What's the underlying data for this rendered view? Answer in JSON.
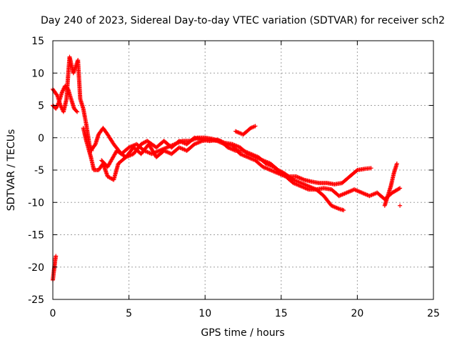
{
  "chart_data": {
    "type": "scatter",
    "title": "Day 240 of 2023, Sidereal Day-to-day VTEC variation (SDTVAR) for receiver sch2",
    "xlabel": "GPS time / hours",
    "ylabel": "SDTVAR / TECUs",
    "xlim": [
      0,
      25
    ],
    "ylim": [
      -25,
      15
    ],
    "x_ticks": [
      0,
      5,
      10,
      15,
      20,
      25
    ],
    "y_ticks": [
      -25,
      -20,
      -15,
      -10,
      -5,
      0,
      5,
      10,
      15
    ],
    "grid": true,
    "legend": "none",
    "marker": "+",
    "colors": {
      "series": "#ff0000",
      "grid": "#a0a0a0",
      "axis": "#000000"
    },
    "series": [
      {
        "name": "trace-1",
        "points": [
          [
            0.0,
            -22.0
          ],
          [
            0.05,
            -21.0
          ],
          [
            0.1,
            -20.0
          ],
          [
            0.15,
            -19.0
          ],
          [
            0.2,
            -18.3
          ]
        ]
      },
      {
        "name": "trace-2",
        "points": [
          [
            0.0,
            7.5
          ],
          [
            0.3,
            6.5
          ],
          [
            0.5,
            5.0
          ],
          [
            0.7,
            4.0
          ],
          [
            0.9,
            6.0
          ],
          [
            1.0,
            9.5
          ],
          [
            1.1,
            12.5
          ],
          [
            1.2,
            11.5
          ],
          [
            1.35,
            10.0
          ],
          [
            1.5,
            11.0
          ],
          [
            1.65,
            12.0
          ],
          [
            1.8,
            6.0
          ],
          [
            2.0,
            4.5
          ],
          [
            2.2,
            2.0
          ],
          [
            2.4,
            -1.0
          ],
          [
            2.55,
            -2.0
          ]
        ]
      },
      {
        "name": "trace-3",
        "points": [
          [
            0.0,
            5.0
          ],
          [
            0.2,
            4.5
          ],
          [
            0.4,
            5.5
          ],
          [
            0.6,
            7.0
          ],
          [
            0.8,
            8.0
          ],
          [
            1.0,
            7.5
          ],
          [
            1.2,
            6.0
          ],
          [
            1.4,
            4.5
          ],
          [
            1.6,
            4.0
          ]
        ]
      },
      {
        "name": "trace-4",
        "points": [
          [
            2.0,
            1.5
          ],
          [
            2.2,
            -0.5
          ],
          [
            2.5,
            -3.0
          ],
          [
            2.7,
            -5.0
          ],
          [
            3.0,
            -5.0
          ],
          [
            3.3,
            -4.0
          ],
          [
            3.6,
            -6.0
          ],
          [
            4.0,
            -6.5
          ],
          [
            4.3,
            -4.0
          ],
          [
            4.8,
            -3.0
          ],
          [
            5.3,
            -2.5
          ],
          [
            5.8,
            -1.0
          ],
          [
            6.2,
            -0.5
          ],
          [
            6.8,
            -1.5
          ],
          [
            7.3,
            -0.5
          ],
          [
            7.8,
            -1.5
          ],
          [
            8.3,
            -0.5
          ],
          [
            8.8,
            -1.0
          ],
          [
            9.3,
            0.0
          ],
          [
            9.8,
            -0.3
          ],
          [
            10.3,
            -0.5
          ],
          [
            10.8,
            -0.3
          ],
          [
            11.3,
            -0.8
          ],
          [
            11.8,
            -1.0
          ],
          [
            12.3,
            -1.5
          ],
          [
            12.8,
            -2.5
          ],
          [
            13.3,
            -3.0
          ],
          [
            13.8,
            -3.5
          ],
          [
            14.3,
            -4.0
          ],
          [
            14.8,
            -5.0
          ],
          [
            15.2,
            -5.5
          ],
          [
            15.8,
            -6.5
          ],
          [
            16.3,
            -7.0
          ],
          [
            16.8,
            -7.5
          ],
          [
            17.3,
            -8.0
          ],
          [
            17.8,
            -9.0
          ],
          [
            18.3,
            -10.5
          ],
          [
            18.8,
            -11.0
          ],
          [
            19.1,
            -11.2
          ]
        ]
      },
      {
        "name": "trace-5",
        "points": [
          [
            2.5,
            -2.0
          ],
          [
            2.8,
            -1.0
          ],
          [
            3.0,
            0.5
          ],
          [
            3.3,
            1.5
          ],
          [
            3.6,
            0.5
          ],
          [
            4.0,
            -1.0
          ],
          [
            4.5,
            -2.5
          ],
          [
            5.0,
            -1.5
          ],
          [
            5.5,
            -1.0
          ],
          [
            6.0,
            -2.0
          ],
          [
            6.5,
            -2.5
          ],
          [
            7.0,
            -2.0
          ],
          [
            7.5,
            -1.5
          ],
          [
            8.0,
            -1.0
          ],
          [
            8.5,
            -0.5
          ],
          [
            9.0,
            -0.5
          ],
          [
            9.5,
            0.0
          ],
          [
            10.0,
            0.0
          ],
          [
            10.5,
            -0.2
          ],
          [
            11.0,
            -0.5
          ],
          [
            11.5,
            -1.5
          ],
          [
            12.0,
            -2.0
          ],
          [
            12.5,
            -2.0
          ],
          [
            13.0,
            -2.5
          ],
          [
            13.5,
            -3.0
          ],
          [
            14.0,
            -4.0
          ],
          [
            14.5,
            -4.5
          ],
          [
            15.0,
            -5.5
          ],
          [
            15.5,
            -6.0
          ],
          [
            16.0,
            -6.0
          ],
          [
            16.5,
            -6.5
          ],
          [
            17.0,
            -6.8
          ],
          [
            17.5,
            -7.0
          ],
          [
            18.0,
            -7.0
          ],
          [
            18.5,
            -7.2
          ],
          [
            19.0,
            -7.0
          ],
          [
            19.5,
            -6.0
          ],
          [
            20.0,
            -5.0
          ],
          [
            20.5,
            -4.8
          ],
          [
            20.9,
            -4.7
          ]
        ]
      },
      {
        "name": "trace-6",
        "points": [
          [
            3.2,
            -3.5
          ],
          [
            3.6,
            -4.5
          ],
          [
            4.2,
            -2.0
          ],
          [
            4.8,
            -3.0
          ],
          [
            5.3,
            -1.5
          ],
          [
            5.8,
            -2.5
          ],
          [
            6.3,
            -1.0
          ],
          [
            6.8,
            -3.0
          ],
          [
            7.3,
            -2.0
          ],
          [
            7.8,
            -2.5
          ],
          [
            8.3,
            -1.5
          ],
          [
            8.8,
            -2.0
          ],
          [
            9.3,
            -1.0
          ],
          [
            9.8,
            -0.5
          ],
          [
            10.3,
            -0.3
          ],
          [
            10.8,
            -0.5
          ],
          [
            11.3,
            -1.0
          ],
          [
            11.8,
            -1.2
          ],
          [
            12.3,
            -2.5
          ],
          [
            12.8,
            -3.0
          ],
          [
            13.3,
            -3.5
          ],
          [
            13.8,
            -4.5
          ],
          [
            14.3,
            -5.0
          ],
          [
            14.8,
            -5.5
          ],
          [
            15.3,
            -6.0
          ],
          [
            15.8,
            -7.0
          ],
          [
            16.3,
            -7.5
          ],
          [
            16.8,
            -8.0
          ],
          [
            17.3,
            -8.0
          ],
          [
            17.8,
            -7.8
          ],
          [
            18.3,
            -8.0
          ],
          [
            18.8,
            -9.0
          ],
          [
            19.3,
            -8.5
          ],
          [
            19.8,
            -8.0
          ],
          [
            20.3,
            -8.5
          ],
          [
            20.8,
            -9.0
          ],
          [
            21.3,
            -8.5
          ],
          [
            21.8,
            -9.5
          ],
          [
            22.3,
            -8.5
          ],
          [
            22.8,
            -7.8
          ]
        ]
      },
      {
        "name": "trace-7",
        "points": [
          [
            21.8,
            -10.5
          ],
          [
            22.0,
            -9.0
          ],
          [
            22.2,
            -7.5
          ],
          [
            22.4,
            -5.5
          ],
          [
            22.6,
            -4.0
          ]
        ]
      },
      {
        "name": "trace-8",
        "points": [
          [
            12.0,
            1.0
          ],
          [
            12.5,
            0.5
          ],
          [
            13.0,
            1.5
          ],
          [
            13.3,
            1.8
          ]
        ]
      },
      {
        "name": "trace-9",
        "points": [
          [
            22.8,
            -10.5
          ]
        ]
      }
    ]
  }
}
